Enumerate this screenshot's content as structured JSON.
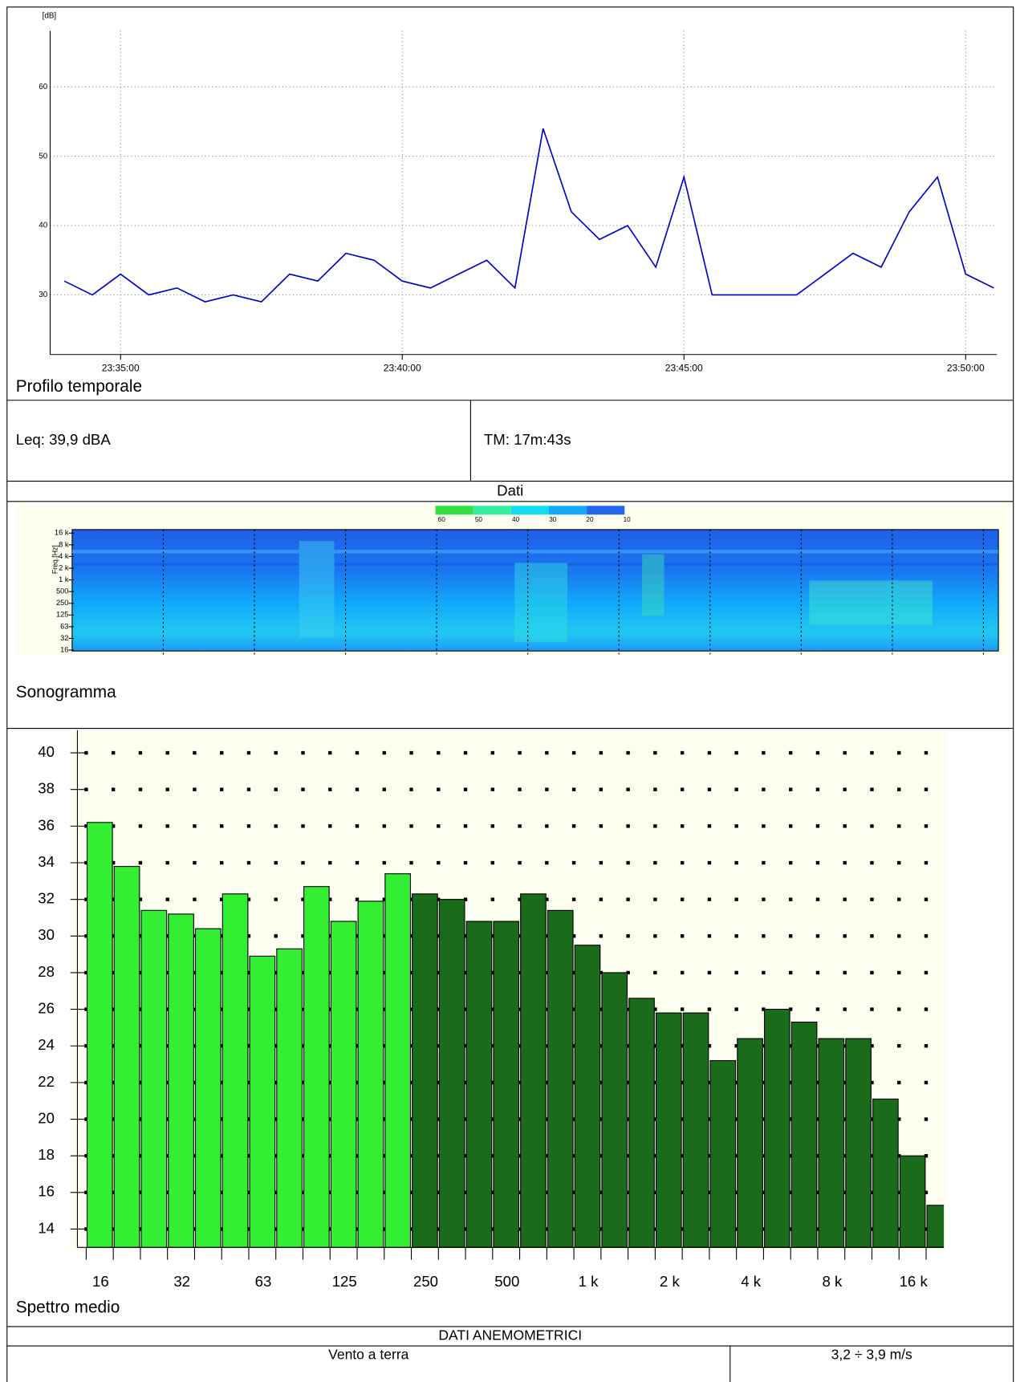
{
  "chart_data": [
    {
      "type": "line",
      "title": "Profilo temporale",
      "y_label": "[dB]",
      "x": [
        "23:34:00",
        "23:34:30",
        "23:35:00",
        "23:35:30",
        "23:36:00",
        "23:36:30",
        "23:37:00",
        "23:37:30",
        "23:38:00",
        "23:38:30",
        "23:39:00",
        "23:39:30",
        "23:40:00",
        "23:40:30",
        "23:41:00",
        "23:41:30",
        "23:42:00",
        "23:42:30",
        "23:43:00",
        "23:43:30",
        "23:44:00",
        "23:44:30",
        "23:45:00",
        "23:45:30",
        "23:46:00",
        "23:46:30",
        "23:47:00",
        "23:47:30",
        "23:48:00",
        "23:48:30",
        "23:49:00",
        "23:49:30",
        "23:50:00",
        "23:50:30"
      ],
      "series": [
        {
          "color": "#0000cc",
          "values": [
            32,
            30,
            33,
            30,
            31,
            29,
            30,
            29,
            33,
            32,
            36,
            35,
            32,
            31,
            33,
            35,
            31,
            54,
            42,
            38,
            40,
            34,
            47,
            30,
            30,
            30,
            30,
            33,
            36,
            34,
            42,
            47,
            33,
            31
          ]
        }
      ],
      "xlim": [
        "23:33:45",
        "23:50:33"
      ],
      "xticks": [
        "23:35:00",
        "23:40:00",
        "23:45:00",
        "23:50:00"
      ],
      "ylim": [
        21.4,
        68.1
      ],
      "yticks": [
        30,
        40,
        50,
        60
      ],
      "grid": true
    },
    {
      "type": "bar",
      "title": "Spettro medio",
      "categories": [
        "16",
        null,
        null,
        "32",
        null,
        null,
        "63",
        null,
        null,
        "125",
        null,
        null,
        "250",
        null,
        null,
        "500",
        null,
        null,
        "1 k",
        null,
        null,
        "2 k",
        null,
        null,
        "4 k",
        null,
        null,
        "8 k",
        null,
        null,
        "16 k",
        null
      ],
      "values": [
        36.2,
        33.8,
        31.4,
        31.2,
        30.4,
        32.3,
        28.9,
        29.3,
        32.7,
        30.8,
        31.9,
        33.4,
        32.3,
        32.0,
        30.8,
        30.8,
        32.3,
        31.4,
        29.5,
        28.0,
        26.6,
        25.8,
        25.8,
        23.2,
        24.4,
        26.0,
        25.3,
        24.4,
        24.4,
        21.1,
        18.0,
        15.3
      ],
      "colors": [
        "#33ee33",
        "#33ee33",
        "#33ee33",
        "#33ee33",
        "#33ee33",
        "#33ee33",
        "#33ee33",
        "#33ee33",
        "#33ee33",
        "#33ee33",
        "#33ee33",
        "#33ee33",
        "#1a6b1a",
        "#1a6b1a",
        "#1a6b1a",
        "#1a6b1a",
        "#1a6b1a",
        "#1a6b1a",
        "#1a6b1a",
        "#1a6b1a",
        "#1a6b1a",
        "#1a6b1a",
        "#1a6b1a",
        "#1a6b1a",
        "#1a6b1a",
        "#1a6b1a",
        "#1a6b1a",
        "#1a6b1a",
        "#1a6b1a",
        "#1a6b1a",
        "#1a6b1a",
        "#1a6b1a"
      ],
      "ylim": [
        13,
        41
      ],
      "yticks": [
        14,
        16,
        18,
        20,
        22,
        24,
        26,
        28,
        30,
        32,
        34,
        36,
        38,
        40
      ],
      "grid": true
    }
  ],
  "sonogram": {
    "title": "Sonogramma",
    "axis_label": "Freq.[Hz]",
    "freq_labels": [
      "16 k",
      "8 k",
      "4 k",
      "2 k",
      "1 k",
      "500",
      "250",
      "125",
      "63",
      "32",
      "16"
    ],
    "colorbar": [
      60,
      50,
      40,
      30,
      20,
      10
    ],
    "colorbar_colors": [
      "#33dd44",
      "#33eea0",
      "#11ddee",
      "#11aaff",
      "#2266ee"
    ]
  },
  "table": {
    "leq": "Leq: 39,9 dBA",
    "tm": "TM: 17m:43s",
    "dati": "Dati",
    "anemo_header": "DATI ANEMOMETRICI",
    "anemo_rows": [
      [
        "Vento a terra",
        "3,2 ÷ 3,9 m/s"
      ]
    ]
  }
}
